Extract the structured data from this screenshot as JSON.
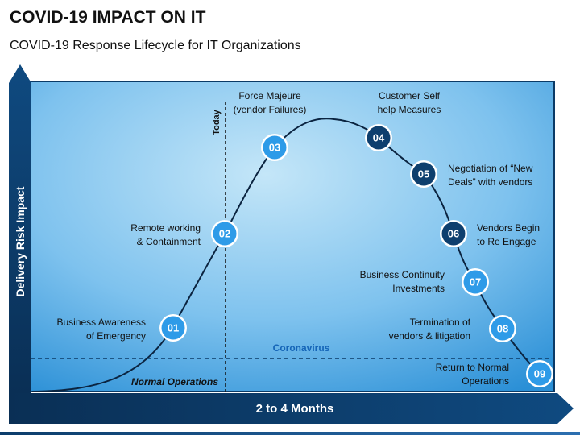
{
  "title": "COVID-19 IMPACT ON IT",
  "subtitle": "COVID-19 Response Lifecycle for IT Organizations",
  "axes": {
    "y_label": "Delivery Risk Impact",
    "x_label": "2 to 4 Months"
  },
  "markers": {
    "today": "Today",
    "coronavirus": "Coronavirus",
    "normal_operations": "Normal Operations"
  },
  "colors": {
    "panel_light": "#bfe3f7",
    "panel_dark": "#2a8fd6",
    "axis_dark": "#0b3a66",
    "node_light": "#2e9be8",
    "node_dark": "#0e3f6e"
  },
  "steps": [
    {
      "number": "01",
      "lines": [
        "Business Awareness",
        "of Emergency"
      ]
    },
    {
      "number": "02",
      "lines": [
        "Remote working",
        "& Containment"
      ]
    },
    {
      "number": "03",
      "lines": [
        "Force Majeure",
        "(vendor Failures)"
      ]
    },
    {
      "number": "04",
      "lines": [
        "Customer Self",
        "help Measures"
      ]
    },
    {
      "number": "05",
      "lines": [
        "Negotiation of “New",
        "Deals” with vendors"
      ]
    },
    {
      "number": "06",
      "lines": [
        "Vendors Begin",
        "to Re Engage"
      ]
    },
    {
      "number": "07",
      "lines": [
        "Business Continuity",
        "Investments"
      ]
    },
    {
      "number": "08",
      "lines": [
        "Termination of",
        "vendors & litigation"
      ]
    },
    {
      "number": "09",
      "lines": [
        "Return to Normal",
        "Operations"
      ]
    }
  ]
}
